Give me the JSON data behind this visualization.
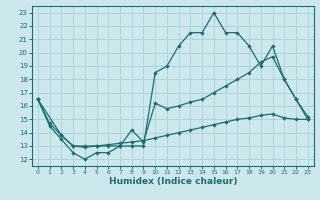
{
  "xlabel": "Humidex (Indice chaleur)",
  "bg_color": "#cce8ec",
  "grid_color": "#aed4d8",
  "line_color": "#1a6e6a",
  "xlim": [
    -0.5,
    23.5
  ],
  "ylim": [
    11.5,
    23.5
  ],
  "yticks": [
    12,
    13,
    14,
    15,
    16,
    17,
    18,
    19,
    20,
    21,
    22,
    23
  ],
  "xticks": [
    0,
    1,
    2,
    3,
    4,
    5,
    6,
    7,
    8,
    9,
    10,
    11,
    12,
    13,
    14,
    15,
    16,
    17,
    18,
    19,
    20,
    21,
    22,
    23
  ],
  "line1_x": [
    0,
    1,
    2,
    3,
    4,
    5,
    6,
    7,
    8,
    9,
    10,
    11,
    12,
    13,
    14,
    15,
    16,
    17,
    18,
    19,
    20,
    21,
    22,
    23
  ],
  "line1_y": [
    16.5,
    14.5,
    13.5,
    12.5,
    12.0,
    12.5,
    12.5,
    13.0,
    13.0,
    13.0,
    18.5,
    19.0,
    20.5,
    21.5,
    21.5,
    23.0,
    21.5,
    21.5,
    20.5,
    19.0,
    20.5,
    18.0,
    16.5,
    15.0
  ],
  "line2_x": [
    0,
    2,
    3,
    4,
    5,
    6,
    7,
    8,
    9,
    10,
    11,
    12,
    13,
    14,
    15,
    16,
    17,
    18,
    19,
    20,
    21,
    22,
    23
  ],
  "line2_y": [
    16.5,
    13.8,
    13.0,
    13.0,
    13.0,
    13.0,
    13.0,
    14.2,
    13.3,
    16.2,
    15.8,
    16.0,
    16.3,
    16.5,
    17.0,
    17.5,
    18.0,
    18.5,
    19.3,
    19.7,
    18.0,
    16.5,
    15.2
  ],
  "line3_x": [
    0,
    1,
    2,
    3,
    4,
    5,
    6,
    7,
    8,
    9,
    10,
    11,
    12,
    13,
    14,
    15,
    16,
    17,
    18,
    19,
    20,
    21,
    22,
    23
  ],
  "line3_y": [
    16.5,
    14.7,
    13.8,
    13.0,
    12.9,
    13.0,
    13.1,
    13.2,
    13.3,
    13.4,
    13.6,
    13.8,
    14.0,
    14.2,
    14.4,
    14.6,
    14.8,
    15.0,
    15.1,
    15.3,
    15.4,
    15.1,
    15.0,
    15.0
  ]
}
